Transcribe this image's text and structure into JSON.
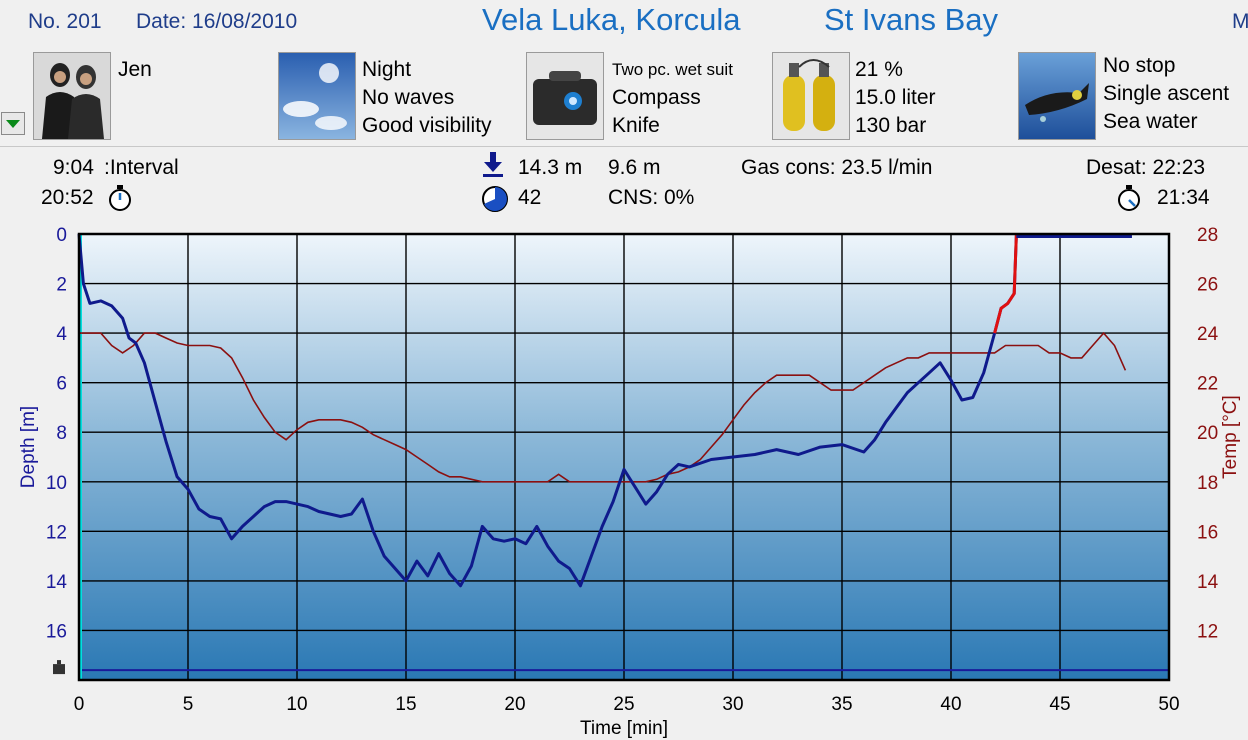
{
  "header": {
    "dive_no": "No. 201",
    "date": "Date: 16/08/2010",
    "location": "Vela Luka, Korcula",
    "site": "St Ivans Bay",
    "cut_text": "M"
  },
  "info": {
    "buddy": {
      "icon": "divers-photo",
      "name": "Jen"
    },
    "conditions": {
      "icon": "sky-photo",
      "lines": [
        "Night",
        "No waves",
        "Good visibility"
      ]
    },
    "equipment": {
      "icon": "dive-bag-photo",
      "lines": [
        "Two pc. wet suit",
        "Compass",
        "Knife"
      ]
    },
    "gas": {
      "icon": "tanks-photo",
      "lines": [
        "21 %",
        "15.0 liter",
        "130 bar"
      ]
    },
    "dive_type": {
      "icon": "diver-photo",
      "lines": [
        "No stop",
        "Single ascent",
        "Sea water"
      ]
    }
  },
  "stats": {
    "interval_time": "9:04",
    "interval_label": ":Interval",
    "entry_time": "20:52",
    "max_depth": "14.3 m",
    "avg_depth": "9.6 m",
    "dive_duration": "42",
    "cns": "CNS:  0%",
    "gas_cons": "Gas cons: 23.5 l/min",
    "desat": "Desat:  22:23",
    "exit_time": "21:34"
  },
  "colors": {
    "depth": "#0f1a8c",
    "temp": "#8b1010",
    "ascent_warning": "#e01010",
    "surface_marker": "#00e0e0"
  },
  "chart_data": {
    "type": "line",
    "xlabel": "Time [min]",
    "ylabel": "Depth [m]",
    "y2label": "Temp [°C]",
    "xlim": [
      0,
      50
    ],
    "ylim": [
      0,
      18
    ],
    "y2lim": [
      10,
      28
    ],
    "xticks": [
      "0",
      "5",
      "10",
      "15",
      "20",
      "25",
      "30",
      "35",
      "40",
      "45",
      "50"
    ],
    "yticks": [
      "0",
      "2",
      "4",
      "6",
      "8",
      "10",
      "12",
      "14",
      "16"
    ],
    "y2ticks": [
      "28",
      "26",
      "24",
      "22",
      "20",
      "18",
      "16",
      "14",
      "12"
    ],
    "bottom_depth_marker": 17.6,
    "grid": true,
    "series": [
      {
        "name": "Depth [m]",
        "axis": "left",
        "x": [
          0,
          0.2,
          0.5,
          1,
          1.5,
          2,
          2.3,
          2.6,
          3,
          3.5,
          4,
          4.5,
          5,
          5.5,
          6,
          6.5,
          7,
          7.5,
          8,
          8.5,
          9,
          9.5,
          10,
          10.5,
          11,
          11.5,
          12,
          12.5,
          13,
          13.5,
          14,
          14.5,
          15,
          15.5,
          16,
          16.5,
          17,
          17.5,
          18,
          18.5,
          19,
          19.5,
          20,
          20.5,
          21,
          21.5,
          22,
          22.5,
          23,
          23.5,
          24,
          24.5,
          25,
          25.5,
          26,
          26.5,
          27,
          27.5,
          28,
          29,
          30,
          31,
          32,
          33,
          34,
          35,
          36,
          36.5,
          37,
          37.5,
          38,
          38.5,
          39,
          39.5,
          40,
          40.5,
          41,
          41.5,
          42,
          42.3,
          42.6,
          42.9,
          43
        ],
        "y": [
          0,
          2,
          2.8,
          2.7,
          2.9,
          3.4,
          4.2,
          4.4,
          5.2,
          6.8,
          8.4,
          9.8,
          10.3,
          11.1,
          11.4,
          11.5,
          12.3,
          11.8,
          11.4,
          11,
          10.8,
          10.8,
          10.9,
          11,
          11.2,
          11.3,
          11.4,
          11.3,
          10.7,
          12,
          13,
          13.5,
          14,
          13.2,
          13.8,
          12.9,
          13.7,
          14.2,
          13.4,
          11.8,
          12.3,
          12.4,
          12.3,
          12.5,
          11.8,
          12.6,
          13.2,
          13.5,
          14.2,
          13,
          11.8,
          10.8,
          9.5,
          10.2,
          10.9,
          10.4,
          9.7,
          9.3,
          9.4,
          9.1,
          9,
          8.9,
          8.7,
          8.9,
          8.6,
          8.5,
          8.8,
          8.3,
          7.6,
          7,
          6.4,
          6,
          5.6,
          5.2,
          5.9,
          6.7,
          6.6,
          5.6,
          4,
          3,
          2.8,
          2.4,
          0
        ],
        "color": "#0f1a8c"
      },
      {
        "name": "Temp [°C]",
        "axis": "right",
        "x": [
          0,
          1,
          1.5,
          2,
          2.5,
          3,
          3.5,
          4,
          4.5,
          5,
          5.5,
          6,
          6.5,
          7,
          7.5,
          8,
          8.5,
          9,
          9.5,
          10,
          10.5,
          11,
          11.5,
          12,
          12.5,
          13,
          13.5,
          14,
          14.5,
          15,
          15.5,
          16,
          16.5,
          17,
          17.5,
          18,
          18.5,
          19,
          19.5,
          20,
          20.5,
          21,
          21.5,
          22,
          22.5,
          23,
          23.5,
          24,
          24.5,
          25,
          25.5,
          26,
          26.5,
          27,
          27.5,
          28,
          28.5,
          29,
          29.5,
          30,
          30.5,
          31,
          31.5,
          32,
          32.5,
          33,
          33.5,
          34,
          34.5,
          35,
          35.5,
          36,
          36.5,
          37,
          37.5,
          38,
          38.5,
          39,
          39.5,
          40,
          40.5,
          41,
          41.5,
          42,
          42.5,
          43,
          43.5,
          44,
          44.5,
          45,
          45.5,
          46,
          46.5,
          47,
          47.5,
          48
        ],
        "y": [
          24,
          24,
          23.5,
          23.2,
          23.5,
          24,
          24,
          23.8,
          23.6,
          23.5,
          23.5,
          23.5,
          23.4,
          23,
          22.2,
          21.3,
          20.6,
          20,
          19.7,
          20.1,
          20.4,
          20.5,
          20.5,
          20.5,
          20.4,
          20.2,
          19.9,
          19.7,
          19.5,
          19.3,
          19,
          18.7,
          18.4,
          18.2,
          18.2,
          18.1,
          18,
          18,
          18,
          18,
          18,
          18,
          18,
          18.3,
          18,
          18,
          18,
          18,
          18,
          18,
          18,
          18,
          18.1,
          18.3,
          18.4,
          18.6,
          18.9,
          19.4,
          19.9,
          20.5,
          21.1,
          21.6,
          22,
          22.3,
          22.3,
          22.3,
          22.3,
          22,
          21.7,
          21.7,
          21.7,
          22,
          22.3,
          22.6,
          22.8,
          23,
          23,
          23.2,
          23.2,
          23.2,
          23.2,
          23.2,
          23.2,
          23.2,
          23.5,
          23.5,
          23.5,
          23.5,
          23.2,
          23.2,
          23,
          23,
          23.5,
          24,
          23.5,
          22.5
        ],
        "color": "#8b1010"
      }
    ]
  }
}
